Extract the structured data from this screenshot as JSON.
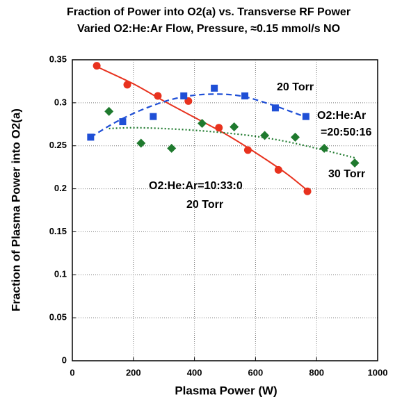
{
  "chart_data": {
    "type": "scatter",
    "title": "Fraction of Power into O2(a) vs. Transverse RF Power",
    "subtitle": "Varied O2:He:Ar Flow, Pressure, ≈0.15 mmol/s NO",
    "x_label": "Plasma Power (W)",
    "y_label": "Fraction of Plasma Power into O2(a)",
    "xlim": [
      0,
      1000
    ],
    "ylim": [
      0,
      0.35
    ],
    "xticks": [
      0,
      200,
      400,
      600,
      800,
      1000
    ],
    "yticks": [
      0,
      0.05,
      0.1,
      0.15,
      0.2,
      0.25,
      0.3,
      0.35
    ],
    "grid": true,
    "series": [
      {
        "color": "#e8321e",
        "marker": "circle",
        "line": "solid",
        "x": [
          80,
          180,
          280,
          380,
          480,
          575,
          675,
          770
        ],
        "values": [
          0.343,
          0.321,
          0.308,
          0.302,
          0.271,
          0.245,
          0.222,
          0.197
        ],
        "fit_x": [
          80,
          200,
          300,
          400,
          500,
          600,
          700,
          770
        ],
        "fit_values": [
          0.342,
          0.322,
          0.302,
          0.283,
          0.264,
          0.242,
          0.218,
          0.198
        ]
      },
      {
        "color": "#1f4fd6",
        "marker": "square",
        "line": "dashed",
        "x": [
          60,
          165,
          265,
          365,
          465,
          565,
          665,
          765
        ],
        "values": [
          0.26,
          0.278,
          0.284,
          0.308,
          0.317,
          0.308,
          0.294,
          0.284
        ],
        "fit_x": [
          60,
          150,
          250,
          350,
          450,
          550,
          650,
          760
        ],
        "fit_values": [
          0.26,
          0.279,
          0.295,
          0.306,
          0.31,
          0.308,
          0.298,
          0.284
        ]
      },
      {
        "color": "#1f7a2e",
        "marker": "diamond",
        "line": "dotted",
        "x": [
          120,
          225,
          325,
          425,
          530,
          630,
          730,
          825,
          925
        ],
        "values": [
          0.29,
          0.253,
          0.247,
          0.276,
          0.272,
          0.262,
          0.26,
          0.247,
          0.23
        ],
        "fit_x": [
          120,
          200,
          300,
          400,
          500,
          600,
          700,
          800,
          925
        ],
        "fit_values": [
          0.27,
          0.271,
          0.27,
          0.268,
          0.265,
          0.261,
          0.255,
          0.247,
          0.236
        ]
      }
    ],
    "annotations": [
      "20 Torr",
      "O2:He:Ar",
      "=20:50:16",
      "30 Torr",
      "O2:He:Ar=10:33:0",
      "20 Torr"
    ]
  }
}
